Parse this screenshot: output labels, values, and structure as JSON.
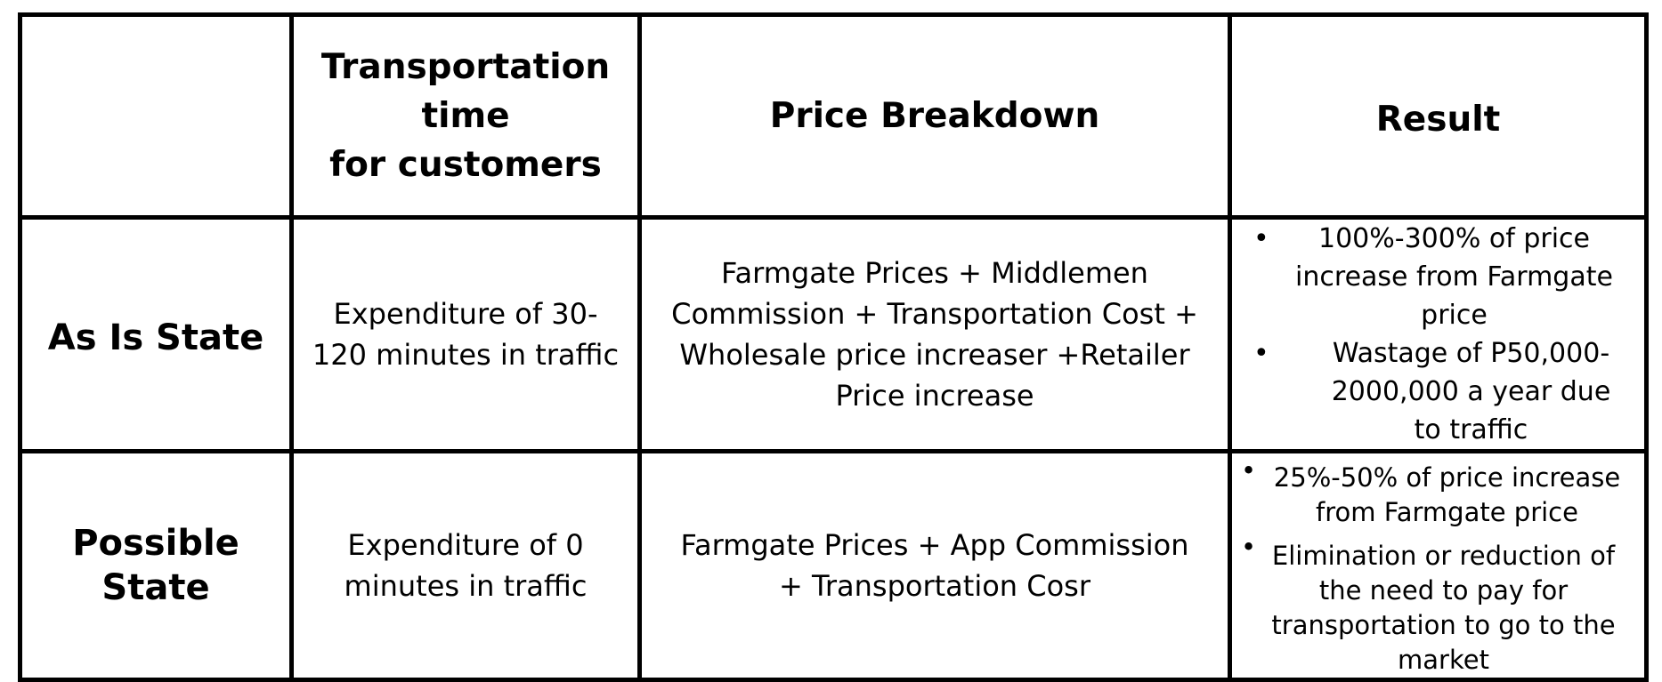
{
  "table": {
    "headers": {
      "corner": "",
      "transport_line1": "Transportation",
      "transport_line2": "time",
      "transport_line3": "for customers",
      "price": "Price Breakdown",
      "result": "Result"
    },
    "rows": [
      {
        "label": "As Is State",
        "transport": "Expenditure of 30-120 minutes in traffic",
        "price": "Farmgate Prices + Middlemen Commission + Transportation Cost + Wholesale price increaser +Retailer Price increase",
        "results": [
          "100%-300% of price increase from Farmgate price",
          "Wastage of P50,000-2000,000 a year due to traffic"
        ]
      },
      {
        "label": "Possible State",
        "transport": "Expenditure of 0 minutes in traffic",
        "price": "Farmgate Prices + App Commission + Transportation Cosr",
        "results": [
          "25%-50% of price increase from Farmgate price",
          "Elimination or reduction of the need to pay for transportation to go to the market"
        ]
      }
    ],
    "bullet_symbol": "•"
  }
}
